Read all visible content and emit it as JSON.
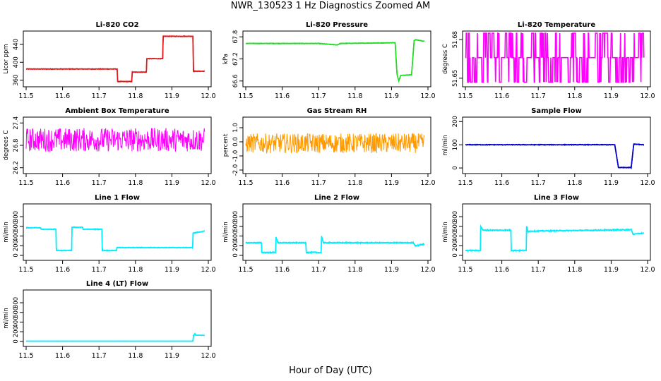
{
  "figure": {
    "title": "NWR_130523  1 Hz Diagnostics Zoomed AM",
    "xlabel": "Hour of Day (UTC)"
  },
  "chart_data": [
    {
      "type": "line",
      "title": "Li-820 CO2",
      "ylabel": "Licor ppm",
      "color": "#e31a1a",
      "xlim": [
        11.5,
        12.0
      ],
      "ylim": [
        350,
        465
      ],
      "yticks": [
        "360",
        "400",
        "440"
      ],
      "ytick_values": [
        360,
        400,
        440
      ],
      "xticks": [
        "11.5",
        "11.6",
        "11.7",
        "11.8",
        "11.9",
        "12.0"
      ],
      "xtick_values": [
        11.5,
        11.6,
        11.7,
        11.8,
        11.9,
        12.0
      ],
      "noise": 0.8,
      "x": [
        11.5,
        11.75,
        11.751,
        11.79,
        11.791,
        11.83,
        11.831,
        11.875,
        11.876,
        11.958,
        11.959,
        11.99
      ],
      "y": [
        385,
        385,
        357,
        357,
        378,
        378,
        408,
        408,
        458,
        458,
        380,
        380
      ]
    },
    {
      "type": "line",
      "title": "Li-820 Pressure",
      "ylabel": "kPa",
      "color": "#22dd22",
      "xlim": [
        11.5,
        12.0
      ],
      "ylim": [
        66.5,
        67.9
      ],
      "yticks": [
        "66.6",
        "67.2",
        "67.8"
      ],
      "ytick_values": [
        66.6,
        67.2,
        67.8
      ],
      "xticks": [
        "11.5",
        "11.6",
        "11.7",
        "11.8",
        "11.9",
        "12.0"
      ],
      "xtick_values": [
        11.5,
        11.6,
        11.7,
        11.8,
        11.9,
        12.0
      ],
      "noise": 0.008,
      "x": [
        11.5,
        11.7,
        11.75,
        11.76,
        11.91,
        11.915,
        11.92,
        11.925,
        11.955,
        11.962,
        11.967,
        11.99
      ],
      "y": [
        67.62,
        67.62,
        67.58,
        67.62,
        67.64,
        66.8,
        66.6,
        66.75,
        66.77,
        67.7,
        67.72,
        67.68
      ]
    },
    {
      "type": "line",
      "title": "Li-820 Temperature",
      "ylabel": "degrees C",
      "color": "#ff00ff",
      "xlim": [
        11.5,
        12.0
      ],
      "ylim": [
        51.645,
        51.685
      ],
      "yticks": [
        "51.65",
        "51.68"
      ],
      "ytick_values": [
        51.65,
        51.68
      ],
      "xticks": [
        "11.5",
        "11.6",
        "11.7",
        "11.8",
        "11.9",
        "12.0"
      ],
      "xtick_values": [
        11.5,
        11.6,
        11.7,
        11.8,
        11.9,
        12.0
      ],
      "levels": [
        51.647,
        51.666,
        51.685
      ],
      "x": [
        11.5,
        11.99
      ],
      "y": [
        51.666,
        51.666
      ]
    },
    {
      "type": "line",
      "title": "Ambient Box Temperature",
      "ylabel": "degrees C",
      "color": "#ff00ff",
      "xlim": [
        11.5,
        12.0
      ],
      "ylim": [
        26.1,
        27.5
      ],
      "yticks": [
        "26.2",
        "26.8",
        "27.4"
      ],
      "ytick_values": [
        26.2,
        26.8,
        27.4
      ],
      "xticks": [
        "11.5",
        "11.6",
        "11.7",
        "11.8",
        "11.9",
        "12.0"
      ],
      "xtick_values": [
        11.5,
        11.6,
        11.7,
        11.8,
        11.9,
        12.0
      ],
      "noise": 0.32,
      "x": [
        11.5,
        11.99
      ],
      "y": [
        26.95,
        26.95
      ]
    },
    {
      "type": "line",
      "title": "Gas Stream RH",
      "ylabel": "percent",
      "color": "#ff9900",
      "xlim": [
        11.5,
        12.0
      ],
      "ylim": [
        -2.1,
        1.6
      ],
      "yticks": [
        "-2.0",
        "-1.0",
        "0.0",
        "1.0"
      ],
      "ytick_values": [
        -2,
        -1,
        0,
        1
      ],
      "xticks": [
        "11.5",
        "11.6",
        "11.7",
        "11.8",
        "11.9",
        "12.0"
      ],
      "xtick_values": [
        11.5,
        11.6,
        11.7,
        11.8,
        11.9,
        12.0
      ],
      "noise": 0.7,
      "x": [
        11.5,
        11.99
      ],
      "y": [
        -0.1,
        -0.1
      ]
    },
    {
      "type": "line",
      "title": "Sample Flow",
      "ylabel": "ml/min",
      "color": "#0000cc",
      "xlim": [
        11.5,
        12.0
      ],
      "ylim": [
        -15,
        210
      ],
      "yticks": [
        "0",
        "100",
        "200"
      ],
      "ytick_values": [
        0,
        100,
        200
      ],
      "xticks": [
        "11.5",
        "11.6",
        "11.7",
        "11.8",
        "11.9",
        "12.0"
      ],
      "xtick_values": [
        11.5,
        11.6,
        11.7,
        11.8,
        11.9,
        12.0
      ],
      "noise": 1.5,
      "x": [
        11.5,
        11.91,
        11.92,
        11.955,
        11.962,
        11.99
      ],
      "y": [
        100,
        100,
        2,
        2,
        103,
        100
      ]
    },
    {
      "type": "line",
      "title": "Line 1 Flow",
      "ylabel": "ml/min",
      "color": "#00eeff",
      "xlim": [
        11.5,
        12.0
      ],
      "ylim": [
        -60,
        1020
      ],
      "yticks": [
        "0",
        "200",
        "400",
        "600",
        "800"
      ],
      "ytick_values": [
        0,
        200,
        400,
        600,
        800
      ],
      "xticks": [
        "11.5",
        "11.6",
        "11.7",
        "11.8",
        "11.9",
        "12.0"
      ],
      "xtick_values": [
        11.5,
        11.6,
        11.7,
        11.8,
        11.9,
        12.0
      ],
      "noise": 8,
      "x": [
        11.5,
        11.54,
        11.541,
        11.582,
        11.583,
        11.625,
        11.626,
        11.655,
        11.656,
        11.708,
        11.709,
        11.748,
        11.749,
        11.957,
        11.958,
        11.99
      ],
      "y": [
        570,
        570,
        540,
        540,
        100,
        100,
        580,
        580,
        540,
        540,
        100,
        100,
        160,
        160,
        460,
        500
      ]
    },
    {
      "type": "line",
      "title": "Line 2 Flow",
      "ylabel": "ml/min",
      "color": "#00eeff",
      "xlim": [
        11.5,
        12.0
      ],
      "ylim": [
        -60,
        1020
      ],
      "yticks": [
        "0",
        "200",
        "400",
        "600",
        "800"
      ],
      "ytick_values": [
        0,
        200,
        400,
        600,
        800
      ],
      "xticks": [
        "11.5",
        "11.6",
        "11.7",
        "11.8",
        "11.9",
        "12.0"
      ],
      "xtick_values": [
        11.5,
        11.6,
        11.7,
        11.8,
        11.9,
        12.0
      ],
      "noise": 12,
      "x": [
        11.5,
        11.543,
        11.544,
        11.582,
        11.583,
        11.588,
        11.589,
        11.665,
        11.666,
        11.707,
        11.708,
        11.713,
        11.714,
        11.96,
        11.965,
        11.99
      ],
      "y": [
        260,
        260,
        60,
        60,
        380,
        260,
        260,
        260,
        60,
        60,
        400,
        260,
        260,
        260,
        200,
        230
      ]
    },
    {
      "type": "line",
      "title": "Line 3 Flow",
      "ylabel": "ml/min",
      "color": "#00eeff",
      "xlim": [
        11.5,
        12.0
      ],
      "ylim": [
        -60,
        1020
      ],
      "yticks": [
        "0",
        "200",
        "400",
        "600",
        "800"
      ],
      "ytick_values": [
        0,
        200,
        400,
        600,
        800
      ],
      "xticks": [
        "11.5",
        "11.6",
        "11.7",
        "11.8",
        "11.9",
        "12.0"
      ],
      "xtick_values": [
        11.5,
        11.6,
        11.7,
        11.8,
        11.9,
        12.0
      ],
      "noise": 12,
      "x": [
        11.5,
        11.541,
        11.542,
        11.548,
        11.549,
        11.625,
        11.626,
        11.667,
        11.668,
        11.672,
        11.673,
        11.955,
        11.96,
        11.99
      ],
      "y": [
        100,
        100,
        600,
        520,
        520,
        520,
        100,
        100,
        600,
        480,
        500,
        530,
        440,
        460
      ]
    },
    {
      "type": "line",
      "title": "Line 4 (LT) Flow",
      "ylabel": "ml/min",
      "color": "#00eeff",
      "xlim": [
        11.5,
        12.0
      ],
      "ylim": [
        -60,
        1020
      ],
      "yticks": [
        "0",
        "200",
        "400",
        "600",
        "800"
      ],
      "ytick_values": [
        0,
        200,
        400,
        600,
        800
      ],
      "xticks": [
        "11.5",
        "11.6",
        "11.7",
        "11.8",
        "11.9",
        "12.0"
      ],
      "xtick_values": [
        11.5,
        11.6,
        11.7,
        11.8,
        11.9,
        12.0
      ],
      "noise": 2,
      "x": [
        11.5,
        11.958,
        11.959,
        11.963,
        11.964,
        11.99
      ],
      "y": [
        5,
        5,
        120,
        160,
        130,
        125
      ]
    }
  ]
}
